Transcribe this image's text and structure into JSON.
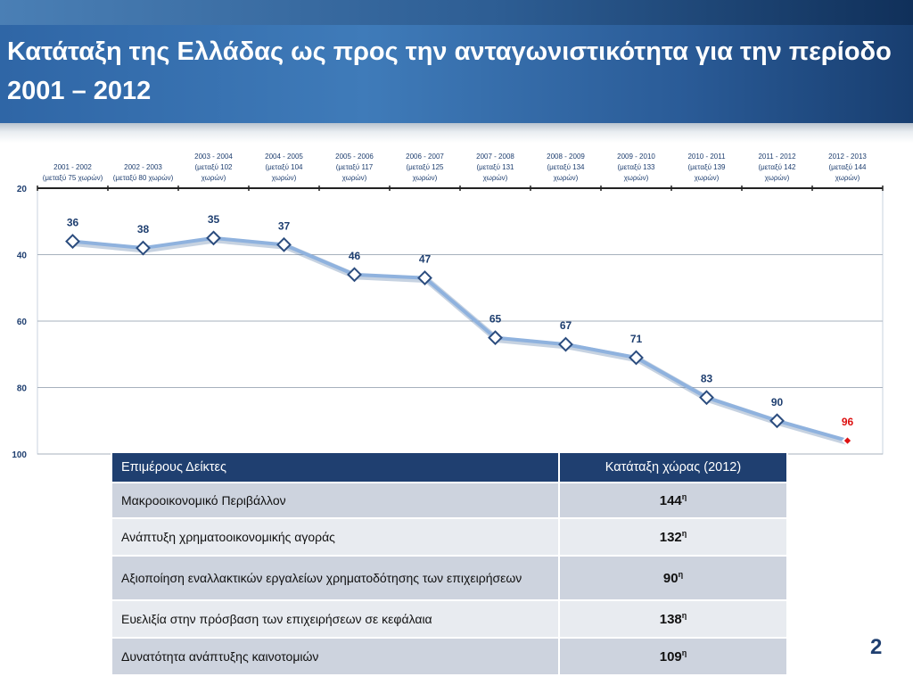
{
  "title": "Κατάταξη της Ελλάδας ως προς την ανταγωνιστικότητα για την περίοδο 2001 – 2012",
  "page_number": "2",
  "colors": {
    "line": "#8fb2de",
    "marker_edge": "#2b4c7e",
    "highlight": "#dd1111",
    "label": "#1f3f70",
    "axis": "#1f3f70"
  },
  "chart_data": {
    "type": "line",
    "title": "",
    "xlabel": "",
    "ylabel": "",
    "y_inverted": true,
    "ylim": [
      20,
      100
    ],
    "yticks": [
      20,
      40,
      60,
      80,
      100
    ],
    "grid": true,
    "categories": [
      [
        "2001 - 2002",
        "(μεταξύ 75 χωρών)"
      ],
      [
        "2002 - 2003",
        "(μεταξύ 80 χωρών)"
      ],
      [
        "2003 - 2004",
        "(μεταξύ 102",
        "χωρών)"
      ],
      [
        "2004 - 2005",
        "(μεταξύ 104",
        "χωρών)"
      ],
      [
        "2005 - 2006",
        "(μεταξύ 117",
        "χωρών)"
      ],
      [
        "2006 - 2007",
        "(μεταξύ 125",
        "χωρών)"
      ],
      [
        "2007 - 2008",
        "(μεταξύ 131",
        "χωρών)"
      ],
      [
        "2008 - 2009",
        "(μεταξύ 134",
        "χωρών)"
      ],
      [
        "2009 - 2010",
        "(μεταξύ 133",
        "χωρών)"
      ],
      [
        "2010 - 2011",
        "(μεταξύ 139",
        "χωρών)"
      ],
      [
        "2011 - 2012",
        "(μεταξύ 142",
        "χωρών)"
      ],
      [
        "2012 - 2013",
        "(μεταξύ 144",
        "χωρών)"
      ]
    ],
    "series": [
      {
        "values": [
          36,
          38,
          35,
          37,
          46,
          47,
          65,
          67,
          71,
          83,
          90,
          96
        ]
      }
    ],
    "highlight_index": 11
  },
  "table": {
    "headers": [
      "Επιμέρους Δείκτες",
      "Κατάταξη χώρας (2012)"
    ],
    "rows": [
      {
        "label": "Μακροοικονομικό Περιβάλλον",
        "rank": "144",
        "sup": "η"
      },
      {
        "label": "Ανάπτυξη χρηματοοικονομικής αγοράς",
        "rank": "132",
        "sup": "η"
      },
      {
        "label": "Αξιοποίηση εναλλακτικών εργαλείων χρηματοδότησης των επιχειρήσεων",
        "rank": "90",
        "sup": "η"
      },
      {
        "label": "Ευελιξία στην πρόσβαση των επιχειρήσεων σε κεφάλαια",
        "rank": "138",
        "sup": "η"
      },
      {
        "label": "Δυνατότητα ανάπτυξης καινοτομιών",
        "rank": "109",
        "sup": "η"
      }
    ]
  }
}
